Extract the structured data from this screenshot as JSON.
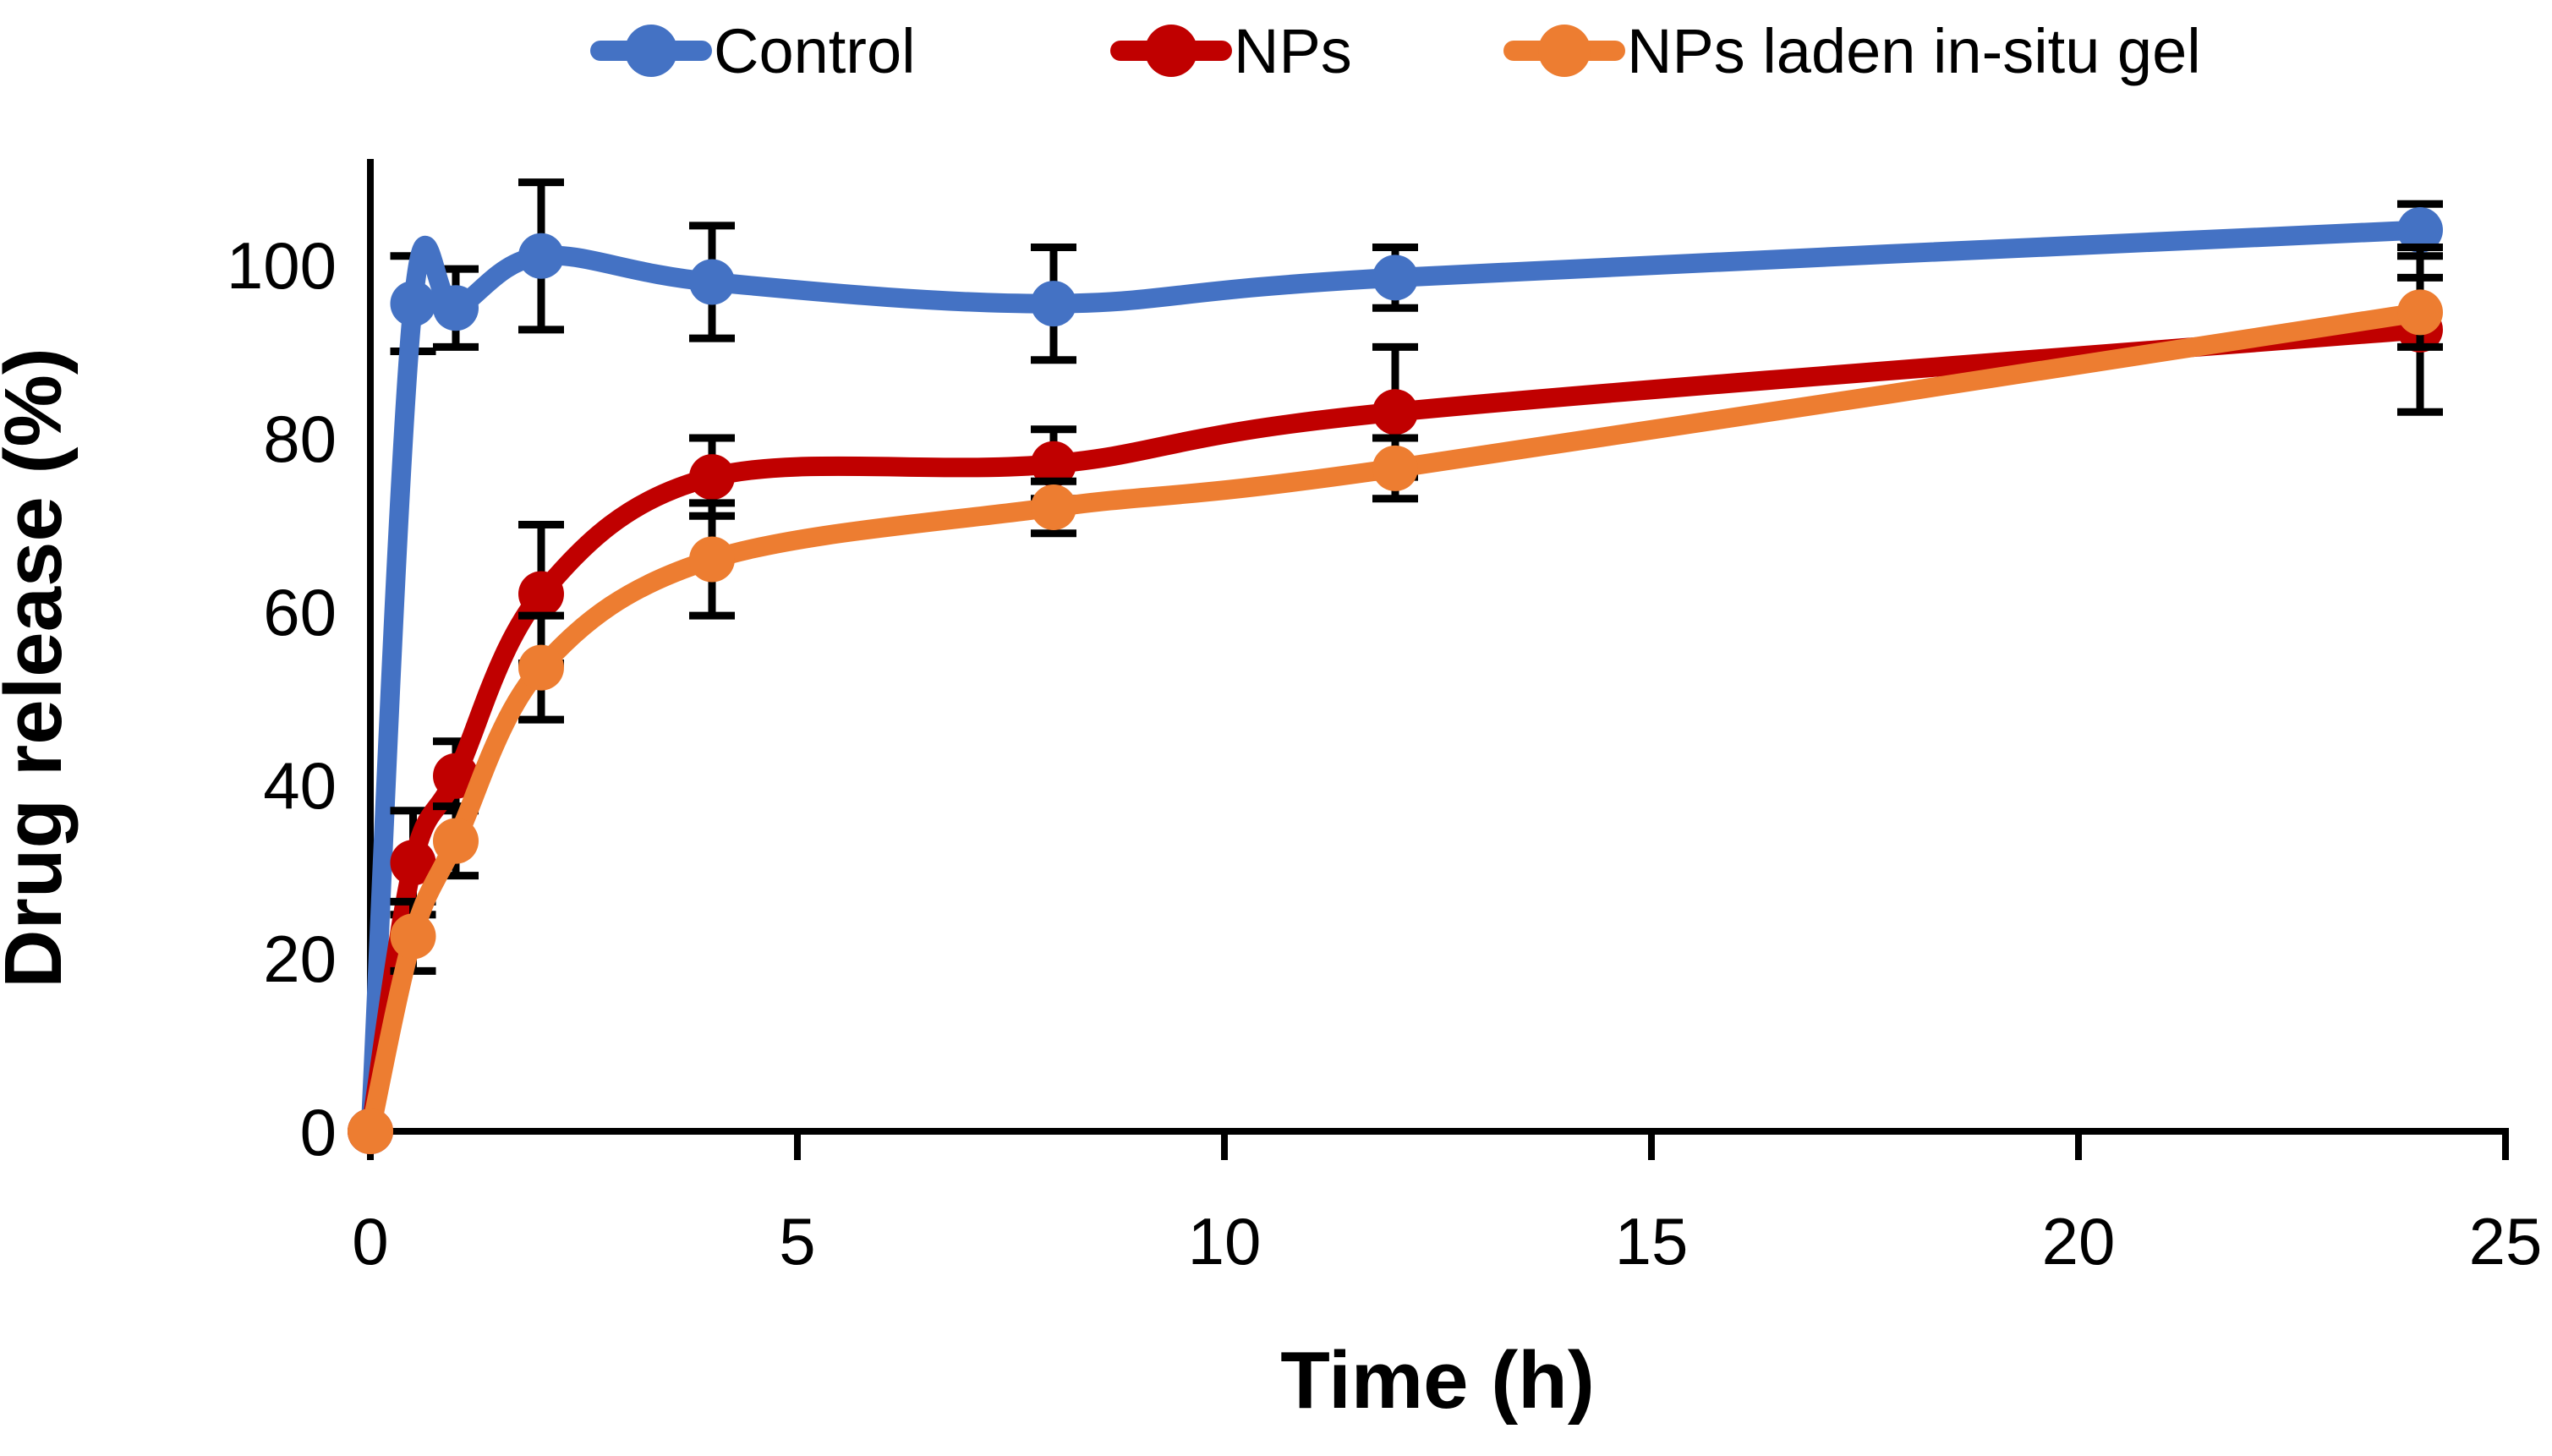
{
  "chart_data": {
    "type": "line",
    "title": "",
    "xlabel": "Time (h)",
    "ylabel": "Drug release (%)",
    "x": [
      0,
      0.5,
      1,
      2,
      4,
      8,
      12,
      24
    ],
    "x_ticks": [
      0,
      5,
      10,
      15,
      20,
      25
    ],
    "y_ticks": [
      0,
      20,
      40,
      60,
      80,
      100
    ],
    "xlim": [
      0,
      25
    ],
    "ylim": [
      0,
      112
    ],
    "grid": false,
    "legend_position": "top",
    "error_bars": true,
    "series": [
      {
        "name": "Control",
        "color": "#4472C4",
        "values": [
          0,
          95.5,
          95,
          101,
          98,
          95.5,
          98.5,
          104
        ],
        "errors": [
          0,
          5.5,
          4.5,
          8.5,
          6.5,
          6.5,
          3.5,
          3
        ]
      },
      {
        "name": "NPs",
        "color": "#C00000",
        "values": [
          0,
          31,
          41,
          62,
          75.5,
          77,
          83,
          92.5
        ],
        "errors": [
          0,
          6,
          4,
          8,
          4.5,
          4,
          7.5,
          9.5
        ]
      },
      {
        "name": "NPs laden in-situ gel",
        "color": "#ED7D31",
        "values": [
          0,
          22.5,
          33.5,
          53.5,
          66,
          72,
          76.5,
          94.5
        ],
        "errors": [
          0,
          4,
          4,
          6,
          6.5,
          3,
          3.5,
          4
        ]
      }
    ]
  }
}
